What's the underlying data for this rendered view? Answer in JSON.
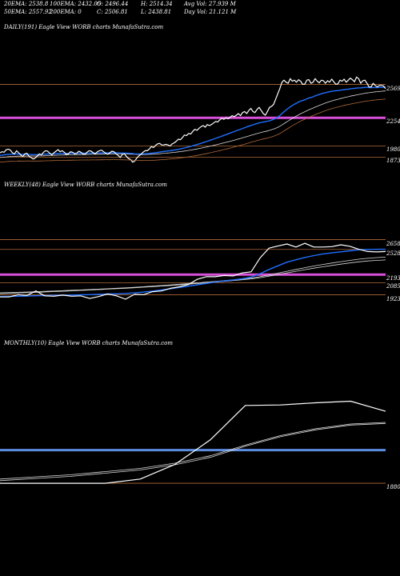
{
  "header": {
    "row1": {
      "ema20": "20EMA: 2538.8",
      "ema100": "100EMA: 2432.05",
      "open": "O: 2496.44",
      "high": "H: 2514.34",
      "avg_vol": "Avg Vol: 27.939 M"
    },
    "row2": {
      "ema50": "50EMA: 2557.92",
      "ema200": "200EMA: 0",
      "close": "C: 2506.81",
      "low": "L: 2438.81",
      "day_vol": "Day Vol: 21.121 M"
    }
  },
  "colors": {
    "background": "#000000",
    "price": "#ffffff",
    "ema_fast": "#1e6fff",
    "ema_slow": "#d9d9d9",
    "level_line": "#b06a3a",
    "magenta": "#d94fd9",
    "blue_level": "#5b8de0"
  },
  "chart_data": [
    {
      "type": "line",
      "title": "DAILY(191) Eagle  View  WORB charts MunafaSutra.com",
      "y_levels": [
        2569,
        2254,
        1980,
        1873
      ],
      "highlight_level": 2250,
      "ylim": [
        1800,
        2650
      ],
      "series": [
        {
          "values": [
            1915,
            1925,
            1920,
            1945,
            1950,
            1940,
            1915,
            1905,
            1935,
            1915,
            1895,
            1880,
            1905,
            1910,
            1880,
            1870,
            1855,
            1865,
            1885,
            1905,
            1895,
            1920,
            1935,
            1930,
            1910,
            1895,
            1915,
            1930,
            1945,
            1925,
            1935,
            1920,
            1900,
            1905,
            1925,
            1920,
            1905,
            1910,
            1930,
            1920,
            1905,
            1900,
            1920,
            1935,
            1930,
            1915,
            1905,
            1925,
            1935,
            1940,
            1925,
            1910,
            1900,
            1915,
            1930,
            1925,
            1905,
            1890,
            1870,
            1900,
            1905,
            1880,
            1860,
            1850,
            1825,
            1835,
            1865,
            1885,
            1900,
            1920,
            1935,
            1935,
            1950,
            1975,
            1965,
            1985,
            2000,
            2005,
            1990,
            1990,
            1995,
            1990,
            1980,
            2000,
            2010,
            2025,
            2045,
            2040,
            2060,
            2085,
            2080,
            2100,
            2095,
            2120,
            2140,
            2130,
            2150,
            2165,
            2175,
            2160,
            2185,
            2175,
            2185,
            2200,
            2215,
            2210,
            2230,
            2245,
            2235,
            2250,
            2240,
            2255,
            2270,
            2260,
            2275,
            2290,
            2270,
            2300,
            2310,
            2290,
            2320,
            2340,
            2310,
            2300,
            2330,
            2350,
            2320,
            2290,
            2275,
            2310,
            2350,
            2360,
            2380,
            2430,
            2480,
            2530,
            2590,
            2610,
            2590,
            2580,
            2625,
            2600,
            2610,
            2590,
            2615,
            2600,
            2570,
            2570,
            2610,
            2615,
            2580,
            2590,
            2625,
            2600,
            2585,
            2610,
            2605,
            2580,
            2605,
            2590,
            2620,
            2595,
            2570,
            2575,
            2610,
            2600,
            2620,
            2590,
            2610,
            2630,
            2615,
            2595,
            2640,
            2625,
            2580,
            2605,
            2610,
            2580,
            2545,
            2545,
            2580,
            2560,
            2545,
            2560,
            2560,
            2555,
            2530
          ]
        },
        {
          "values": [
            1890,
            1893,
            1896,
            1899,
            1900,
            1901,
            1902,
            1902,
            1903,
            1903,
            1902,
            1901,
            1900,
            1900,
            1899,
            1898,
            1897,
            1897,
            1897,
            1898,
            1899,
            1900,
            1902,
            1903,
            1904,
            1904,
            1905,
            1906,
            1907,
            1908,
            1909,
            1909,
            1909,
            1909,
            1910,
            1910,
            1910,
            1910,
            1911,
            1911,
            1911,
            1911,
            1911,
            1912,
            1912,
            1912,
            1912,
            1912,
            1913,
            1914,
            1914,
            1914,
            1914,
            1914,
            1915,
            1915,
            1915,
            1914,
            1913,
            1913,
            1912,
            1911,
            1910,
            1909,
            1907,
            1905,
            1904,
            1904,
            1904,
            1905,
            1906,
            1907,
            1909,
            1911,
            1913,
            1916,
            1919,
            1922,
            1925,
            1928,
            1930,
            1933,
            1935,
            1938,
            1941,
            1944,
            1948,
            1952,
            1956,
            1961,
            1966,
            1971,
            1976,
            1982,
            1988,
            1994,
            2000,
            2006,
            2013,
            2019,
            2026,
            2032,
            2039,
            2046,
            2053,
            2060,
            2067,
            2074,
            2082,
            2089,
            2096,
            2104,
            2111,
            2118,
            2126,
            2133,
            2140,
            2148,
            2155,
            2162,
            2170,
            2177,
            2183,
            2189,
            2195,
            2201,
            2206,
            2210,
            2213,
            2217,
            2222,
            2228,
            2235,
            2245,
            2257,
            2272,
            2290,
            2308,
            2325,
            2339,
            2355,
            2368,
            2380,
            2390,
            2401,
            2410,
            2416,
            2422,
            2431,
            2440,
            2445,
            2451,
            2460,
            2467,
            2473,
            2480,
            2486,
            2490,
            2495,
            2499,
            2504,
            2507,
            2509,
            2511,
            2514,
            2517,
            2520,
            2522,
            2524,
            2527,
            2530,
            2531,
            2534,
            2536,
            2537,
            2539,
            2541,
            2541,
            2540,
            2539,
            2540,
            2540,
            2540,
            2541,
            2541,
            2541,
            2541
          ]
        },
        {
          "values": [
            1870,
            1872,
            1874,
            1876,
            1878,
            1879,
            1880,
            1881,
            1882,
            1883,
            1883,
            1883,
            1883,
            1884,
            1884,
            1884,
            1884,
            1884,
            1884,
            1885,
            1885,
            1886,
            1887,
            1888,
            1888,
            1889,
            1890,
            1891,
            1892,
            1893,
            1893,
            1894,
            1894,
            1895,
            1895,
            1896,
            1896,
            1897,
            1897,
            1898,
            1898,
            1898,
            1899,
            1899,
            1900,
            1900,
            1900,
            1901,
            1901,
            1902,
            1902,
            1903,
            1903,
            1903,
            1904,
            1904,
            1904,
            1904,
            1904,
            1904,
            1903,
            1903,
            1902,
            1902,
            1901,
            1900,
            1899,
            1899,
            1898,
            1898,
            1899,
            1899,
            1900,
            1901,
            1902,
            1903,
            1905,
            1906,
            1908,
            1910,
            1911,
            1913,
            1915,
            1917,
            1919,
            1921,
            1924,
            1926,
            1929,
            1932,
            1935,
            1938,
            1941,
            1945,
            1948,
            1952,
            1956,
            1960,
            1964,
            1968,
            1972,
            1977,
            1981,
            1986,
            1990,
            1995,
            2000,
            2005,
            2010,
            2015,
            2020,
            2025,
            2030,
            2036,
            2041,
            2047,
            2052,
            2058,
            2064,
            2070,
            2076,
            2082,
            2088,
            2093,
            2099,
            2105,
            2110,
            2115,
            2119,
            2124,
            2130,
            2136,
            2142,
            2150,
            2159,
            2169,
            2181,
            2194,
            2207,
            2219,
            2232,
            2244,
            2256,
            2267,
            2278,
            2289,
            2298,
            2307,
            2317,
            2326,
            2335,
            2343,
            2352,
            2360,
            2368,
            2376,
            2384,
            2391,
            2398,
            2405,
            2411,
            2417,
            2422,
            2427,
            2433,
            2438,
            2443,
            2448,
            2452,
            2457,
            2461,
            2465,
            2469,
            2473,
            2477,
            2481,
            2485,
            2488,
            2490,
            2493,
            2496,
            2498,
            2500,
            2502,
            2504,
            2506,
            2507
          ]
        }
      ]
    },
    {
      "type": "line",
      "title": "WEEKLY(48) Eagle  View  WORB charts MunafaSutra.com",
      "y_levels": [
        2658,
        2528,
        2193,
        2085,
        1923
      ],
      "highlight_level": 2193,
      "ylim": [
        1780,
        2760
      ],
      "series": [
        {
          "values": [
            1895,
            1895,
            1925,
            1915,
            1975,
            1910,
            1905,
            1920,
            1905,
            1910,
            1875,
            1900,
            1935,
            1910,
            1865,
            1930,
            1925,
            1965,
            1975,
            2010,
            2030,
            2060,
            2130,
            2165,
            2165,
            2180,
            2175,
            2215,
            2230,
            2415,
            2545,
            2575,
            2600,
            2560,
            2610,
            2560,
            2560,
            2565,
            2590,
            2570,
            2530,
            2500,
            2495,
            2500
          ]
        },
        {
          "values": [
            1900,
            1902,
            1905,
            1908,
            1911,
            1914,
            1916,
            1919,
            1921,
            1924,
            1926,
            1930,
            1934,
            1938,
            1942,
            1949,
            1960,
            1973,
            1989,
            2005,
            2022,
            2039,
            2057,
            2075,
            2093,
            2109,
            2122,
            2138,
            2159,
            2205,
            2262,
            2310,
            2358,
            2390,
            2421,
            2446,
            2468,
            2482,
            2496,
            2510,
            2524,
            2528,
            2530,
            2530
          ]
        },
        {
          "values": [
            1950,
            1953,
            1957,
            1961,
            1965,
            1970,
            1974,
            1979,
            1984,
            1989,
            1994,
            1999,
            2005,
            2011,
            2017,
            2024,
            2031,
            2039,
            2047,
            2055,
            2064,
            2073,
            2082,
            2092,
            2102,
            2112,
            2122,
            2133,
            2145,
            2165,
            2188,
            2212,
            2237,
            2262,
            2285,
            2307,
            2328,
            2347,
            2365,
            2382,
            2398,
            2410,
            2419,
            2425
          ]
        },
        {
          "values": [
            1940,
            1944,
            1948,
            1952,
            1956,
            1961,
            1966,
            1971,
            1976,
            1982,
            1987,
            1993,
            1999,
            2005,
            2011,
            2018,
            2025,
            2032,
            2040,
            2048,
            2056,
            2065,
            2074,
            2083,
            2093,
            2103,
            2113,
            2124,
            2136,
            2152,
            2172,
            2193,
            2215,
            2237,
            2258,
            2278,
            2297,
            2315,
            2332,
            2348,
            2363,
            2374,
            2382,
            2388
          ]
        }
      ]
    },
    {
      "type": "line",
      "title": "MONTHLY(10) Eagle  View  WORB charts MunafaSutra.com",
      "y_levels": [
        1880
      ],
      "highlight_level": 2193,
      "ylim": [
        1820,
        2780
      ],
      "series": [
        {
          "values": [
            1880,
            1880,
            1880,
            1880,
            1920,
            2060,
            2290,
            2615,
            2620,
            2640,
            2655,
            2560
          ]
        },
        {
          "values": [
            1920,
            1940,
            1960,
            1990,
            2020,
            2070,
            2140,
            2240,
            2330,
            2395,
            2440,
            2455
          ]
        },
        {
          "values": [
            1905,
            1925,
            1945,
            1975,
            2005,
            2055,
            2125,
            2230,
            2320,
            2385,
            2430,
            2445
          ]
        }
      ]
    }
  ]
}
